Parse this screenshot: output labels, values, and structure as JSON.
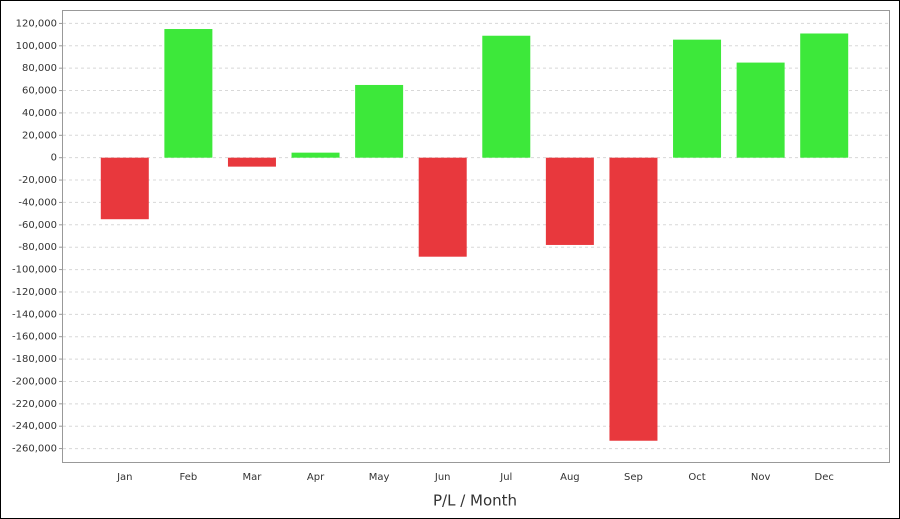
{
  "chart_data": {
    "type": "bar",
    "x_label": "P/L / Month",
    "categories": [
      "Jan",
      "Feb",
      "Mar",
      "Apr",
      "May",
      "Jun",
      "Jul",
      "Aug",
      "Sep",
      "Oct",
      "Nov",
      "Dec"
    ],
    "values": [
      -55000,
      115000,
      -8000,
      4500,
      65000,
      -88500,
      109000,
      -78000,
      -253000,
      105500,
      85000,
      111000
    ],
    "positive_color": "#3de83a",
    "negative_color": "#e8383d",
    "ylim": [
      -272000,
      132000
    ],
    "yticks": [
      {
        "value": 120000,
        "label": "120,000"
      },
      {
        "value": 100000,
        "label": "100,000"
      },
      {
        "value": 80000,
        "label": "80,000"
      },
      {
        "value": 60000,
        "label": "60,000"
      },
      {
        "value": 40000,
        "label": "40,000"
      },
      {
        "value": 20000,
        "label": "20,000"
      },
      0,
      {
        "value": -20000,
        "label": "-20,000"
      },
      {
        "value": -40000,
        "label": "-40,000"
      },
      {
        "value": -60000,
        "label": "-60,000"
      },
      {
        "value": -80000,
        "label": "-80,000"
      },
      {
        "value": -100000,
        "label": "-100,000"
      },
      {
        "value": -120000,
        "label": "-120,000"
      },
      {
        "value": -140000,
        "label": "-140,000"
      },
      {
        "value": -160000,
        "label": "-160,000"
      },
      {
        "value": -180000,
        "label": "-180,000"
      },
      {
        "value": -200000,
        "label": "-200,000"
      },
      {
        "value": -220000,
        "label": "-220,000"
      },
      {
        "value": -240000,
        "label": "-240,000"
      },
      {
        "value": -260000,
        "label": "-260,000"
      }
    ],
    "grid": true
  }
}
